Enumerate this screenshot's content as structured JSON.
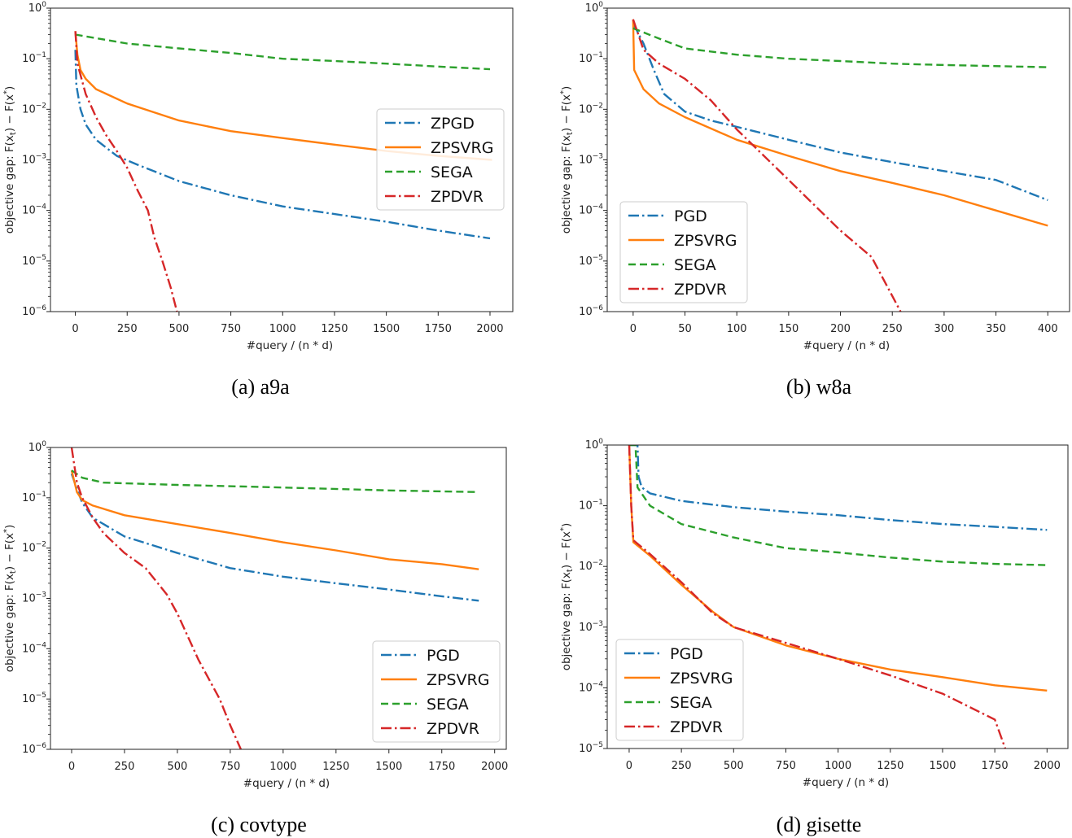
{
  "colors": {
    "ZPGD": "#1f77b4",
    "PGD": "#1f77b4",
    "ZPSVRG": "#ff7f0e",
    "SEGA": "#2ca02c",
    "ZPDVR": "#d62728"
  },
  "chart_data": [
    {
      "type": "line",
      "caption": "(a)  a9a",
      "xlabel": "#query / (n * d)",
      "ylabel": "objective gap: F(x_t) − F(x^*)",
      "yscale": "log",
      "ylim": [
        1e-06,
        1
      ],
      "xlim": [
        -120,
        2110
      ],
      "xticks": [
        0,
        250,
        500,
        750,
        1000,
        1250,
        1500,
        1750,
        2000
      ],
      "yticks": [
        1,
        0.1,
        0.01,
        0.001,
        0.0001,
        1e-05,
        1e-06
      ],
      "legend": "center-right",
      "grid": false,
      "series": [
        {
          "name": "ZPGD",
          "style": "dashdot",
          "x": [
            0,
            5,
            25,
            50,
            100,
            200,
            300,
            500,
            750,
            1000,
            1250,
            1500,
            1750,
            2000
          ],
          "y": [
            0.15,
            0.03,
            0.01,
            0.005,
            0.0025,
            0.0012,
            0.0008,
            0.00038,
            0.0002,
            0.00012,
            8.5e-05,
            6e-05,
            4e-05,
            2.8e-05
          ]
        },
        {
          "name": "ZPSVRG",
          "style": "solid",
          "x": [
            0,
            10,
            25,
            50,
            100,
            250,
            500,
            750,
            1000,
            1250,
            1500,
            1750,
            2010
          ],
          "y": [
            0.35,
            0.12,
            0.06,
            0.04,
            0.025,
            0.013,
            0.006,
            0.0037,
            0.0027,
            0.002,
            0.0015,
            0.0012,
            0.001
          ]
        },
        {
          "name": "SEGA",
          "style": "dashed",
          "x": [
            0,
            250,
            500,
            750,
            1000,
            1250,
            1500,
            1750,
            2000
          ],
          "y": [
            0.3,
            0.2,
            0.16,
            0.13,
            0.1,
            0.09,
            0.08,
            0.07,
            0.062
          ]
        },
        {
          "name": "ZPDVR",
          "style": "dashdot",
          "x": [
            0,
            10,
            50,
            100,
            150,
            200,
            250,
            300,
            350,
            380,
            420,
            460,
            490
          ],
          "y": [
            0.35,
            0.08,
            0.02,
            0.007,
            0.003,
            0.0015,
            0.0007,
            0.00025,
            0.0001,
            3e-05,
            1e-05,
            3e-06,
            1e-06
          ]
        }
      ]
    },
    {
      "type": "line",
      "caption": "(b)  w8a",
      "xlabel": "#query / (n * d)",
      "ylabel": "objective gap: F(x_t) − F(x^*)",
      "yscale": "log",
      "ylim": [
        1e-06,
        1
      ],
      "xlim": [
        -25,
        421
      ],
      "xticks": [
        0,
        50,
        100,
        150,
        200,
        250,
        300,
        350,
        400
      ],
      "yticks": [
        1,
        0.1,
        0.01,
        0.001,
        0.0001,
        1e-05,
        1e-06
      ],
      "legend": "lower-left",
      "grid": false,
      "series": [
        {
          "name": "PGD",
          "style": "dashdot",
          "x": [
            0,
            10,
            20,
            30,
            50,
            75,
            100,
            150,
            200,
            250,
            300,
            350,
            400
          ],
          "y": [
            0.5,
            0.2,
            0.06,
            0.02,
            0.009,
            0.006,
            0.0045,
            0.0025,
            0.0014,
            0.0009,
            0.0006,
            0.0004,
            0.00016
          ]
        },
        {
          "name": "ZPSVRG",
          "style": "solid",
          "x": [
            0,
            1,
            10,
            25,
            50,
            100,
            150,
            200,
            250,
            300,
            350,
            400
          ],
          "y": [
            0.6,
            0.06,
            0.025,
            0.013,
            0.007,
            0.0025,
            0.0012,
            0.0006,
            0.00035,
            0.0002,
            0.0001,
            5e-05
          ]
        },
        {
          "name": "SEGA",
          "style": "dashed",
          "x": [
            0,
            25,
            50,
            100,
            150,
            200,
            250,
            300,
            400
          ],
          "y": [
            0.4,
            0.25,
            0.16,
            0.12,
            0.1,
            0.09,
            0.08,
            0.075,
            0.068
          ]
        },
        {
          "name": "ZPDVR",
          "style": "dashdot",
          "x": [
            0,
            10,
            25,
            50,
            75,
            100,
            150,
            200,
            230,
            258
          ],
          "y": [
            0.6,
            0.15,
            0.08,
            0.04,
            0.015,
            0.004,
            0.0004,
            4e-05,
            1.2e-05,
            1e-06
          ]
        }
      ]
    },
    {
      "type": "line",
      "caption": "(c)  covtype",
      "xlabel": "#query / (n * d)",
      "ylabel": "objective gap: F(x_t) − F(x^*)",
      "yscale": "log",
      "ylim": [
        1e-06,
        1
      ],
      "xlim": [
        -100,
        2055
      ],
      "xticks": [
        0,
        250,
        500,
        750,
        1000,
        1250,
        1500,
        1750,
        2000
      ],
      "yticks": [
        1,
        0.1,
        0.01,
        0.001,
        0.0001,
        1e-05,
        1e-06
      ],
      "legend": "lower-right",
      "grid": false,
      "series": [
        {
          "name": "PGD",
          "style": "dashdot",
          "x": [
            0,
            25,
            50,
            100,
            250,
            500,
            750,
            1000,
            1250,
            1500,
            1750,
            1925
          ],
          "y": [
            0.3,
            0.15,
            0.08,
            0.04,
            0.017,
            0.008,
            0.004,
            0.0027,
            0.002,
            0.0015,
            0.0011,
            0.0009
          ]
        },
        {
          "name": "ZPSVRG",
          "style": "solid",
          "x": [
            0,
            25,
            50,
            100,
            250,
            500,
            750,
            1000,
            1250,
            1500,
            1750,
            1925
          ],
          "y": [
            0.35,
            0.13,
            0.09,
            0.07,
            0.045,
            0.03,
            0.02,
            0.013,
            0.009,
            0.006,
            0.0048,
            0.0038
          ]
        },
        {
          "name": "SEGA",
          "style": "dashed",
          "x": [
            0,
            50,
            150,
            500,
            1000,
            1500,
            1925
          ],
          "y": [
            0.35,
            0.25,
            0.2,
            0.18,
            0.16,
            0.14,
            0.13
          ]
        },
        {
          "name": "ZPDVR",
          "style": "dashdot",
          "x": [
            0,
            25,
            50,
            100,
            150,
            250,
            350,
            450,
            500,
            600,
            700,
            750,
            800
          ],
          "y": [
            1,
            0.2,
            0.1,
            0.04,
            0.02,
            0.008,
            0.004,
            0.0012,
            0.0005,
            6e-05,
            1e-05,
            3e-06,
            1e-06
          ]
        }
      ]
    },
    {
      "type": "line",
      "caption": "(d)  gisette",
      "xlabel": "#query / (n * d)",
      "ylabel": "objective gap: F(x_t) − F(x^*)",
      "yscale": "log",
      "ylim": [
        1e-05,
        1
      ],
      "xlim": [
        -105,
        2100
      ],
      "xticks": [
        0,
        250,
        500,
        750,
        1000,
        1250,
        1500,
        1750,
        2000
      ],
      "yticks": [
        1,
        0.1,
        0.01,
        0.001,
        0.0001,
        1e-05
      ],
      "legend": "lower-left",
      "grid": false,
      "series": [
        {
          "name": "PGD",
          "style": "dashdot",
          "x": [
            0,
            40,
            45,
            60,
            100,
            250,
            500,
            750,
            1000,
            1250,
            1500,
            1750,
            2000
          ],
          "y": [
            1,
            1,
            0.3,
            0.2,
            0.16,
            0.12,
            0.095,
            0.08,
            0.07,
            0.058,
            0.05,
            0.045,
            0.04
          ]
        },
        {
          "name": "ZPSVRG",
          "style": "solid",
          "x": [
            0,
            10,
            20,
            100,
            250,
            400,
            500,
            750,
            1000,
            1250,
            1500,
            1750,
            2000
          ],
          "y": [
            1,
            0.1,
            0.025,
            0.015,
            0.005,
            0.0018,
            0.001,
            0.0005,
            0.0003,
            0.0002,
            0.00015,
            0.00011,
            9e-05
          ]
        },
        {
          "name": "SEGA",
          "style": "dashed",
          "x": [
            0,
            30,
            40,
            100,
            250,
            500,
            750,
            1000,
            1250,
            1500,
            1750,
            2000
          ],
          "y": [
            1,
            1,
            0.2,
            0.1,
            0.05,
            0.03,
            0.02,
            0.017,
            0.014,
            0.012,
            0.011,
            0.0105
          ]
        },
        {
          "name": "ZPDVR",
          "style": "dashdot",
          "x": [
            0,
            10,
            20,
            100,
            250,
            400,
            500,
            750,
            1000,
            1250,
            1500,
            1750,
            1800
          ],
          "y": [
            1,
            0.1,
            0.027,
            0.016,
            0.0055,
            0.0017,
            0.001,
            0.00055,
            0.0003,
            0.00016,
            8e-05,
            3e-05,
            1e-05
          ]
        }
      ]
    }
  ]
}
